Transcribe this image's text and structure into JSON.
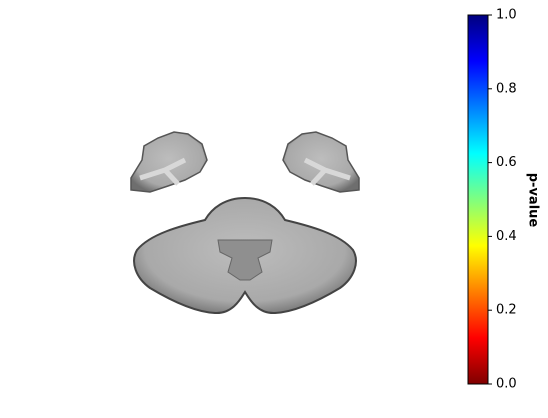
{
  "chart_data": {
    "type": "colorbar",
    "label": "p-value",
    "colormap": "jet_r",
    "ylim": [
      0,
      1
    ],
    "yticks": [
      {
        "value": 0,
        "label": "0.0"
      },
      0.2,
      0.4,
      0.6,
      0.8,
      {
        "value": 1,
        "label": "1.0"
      }
    ]
  }
}
